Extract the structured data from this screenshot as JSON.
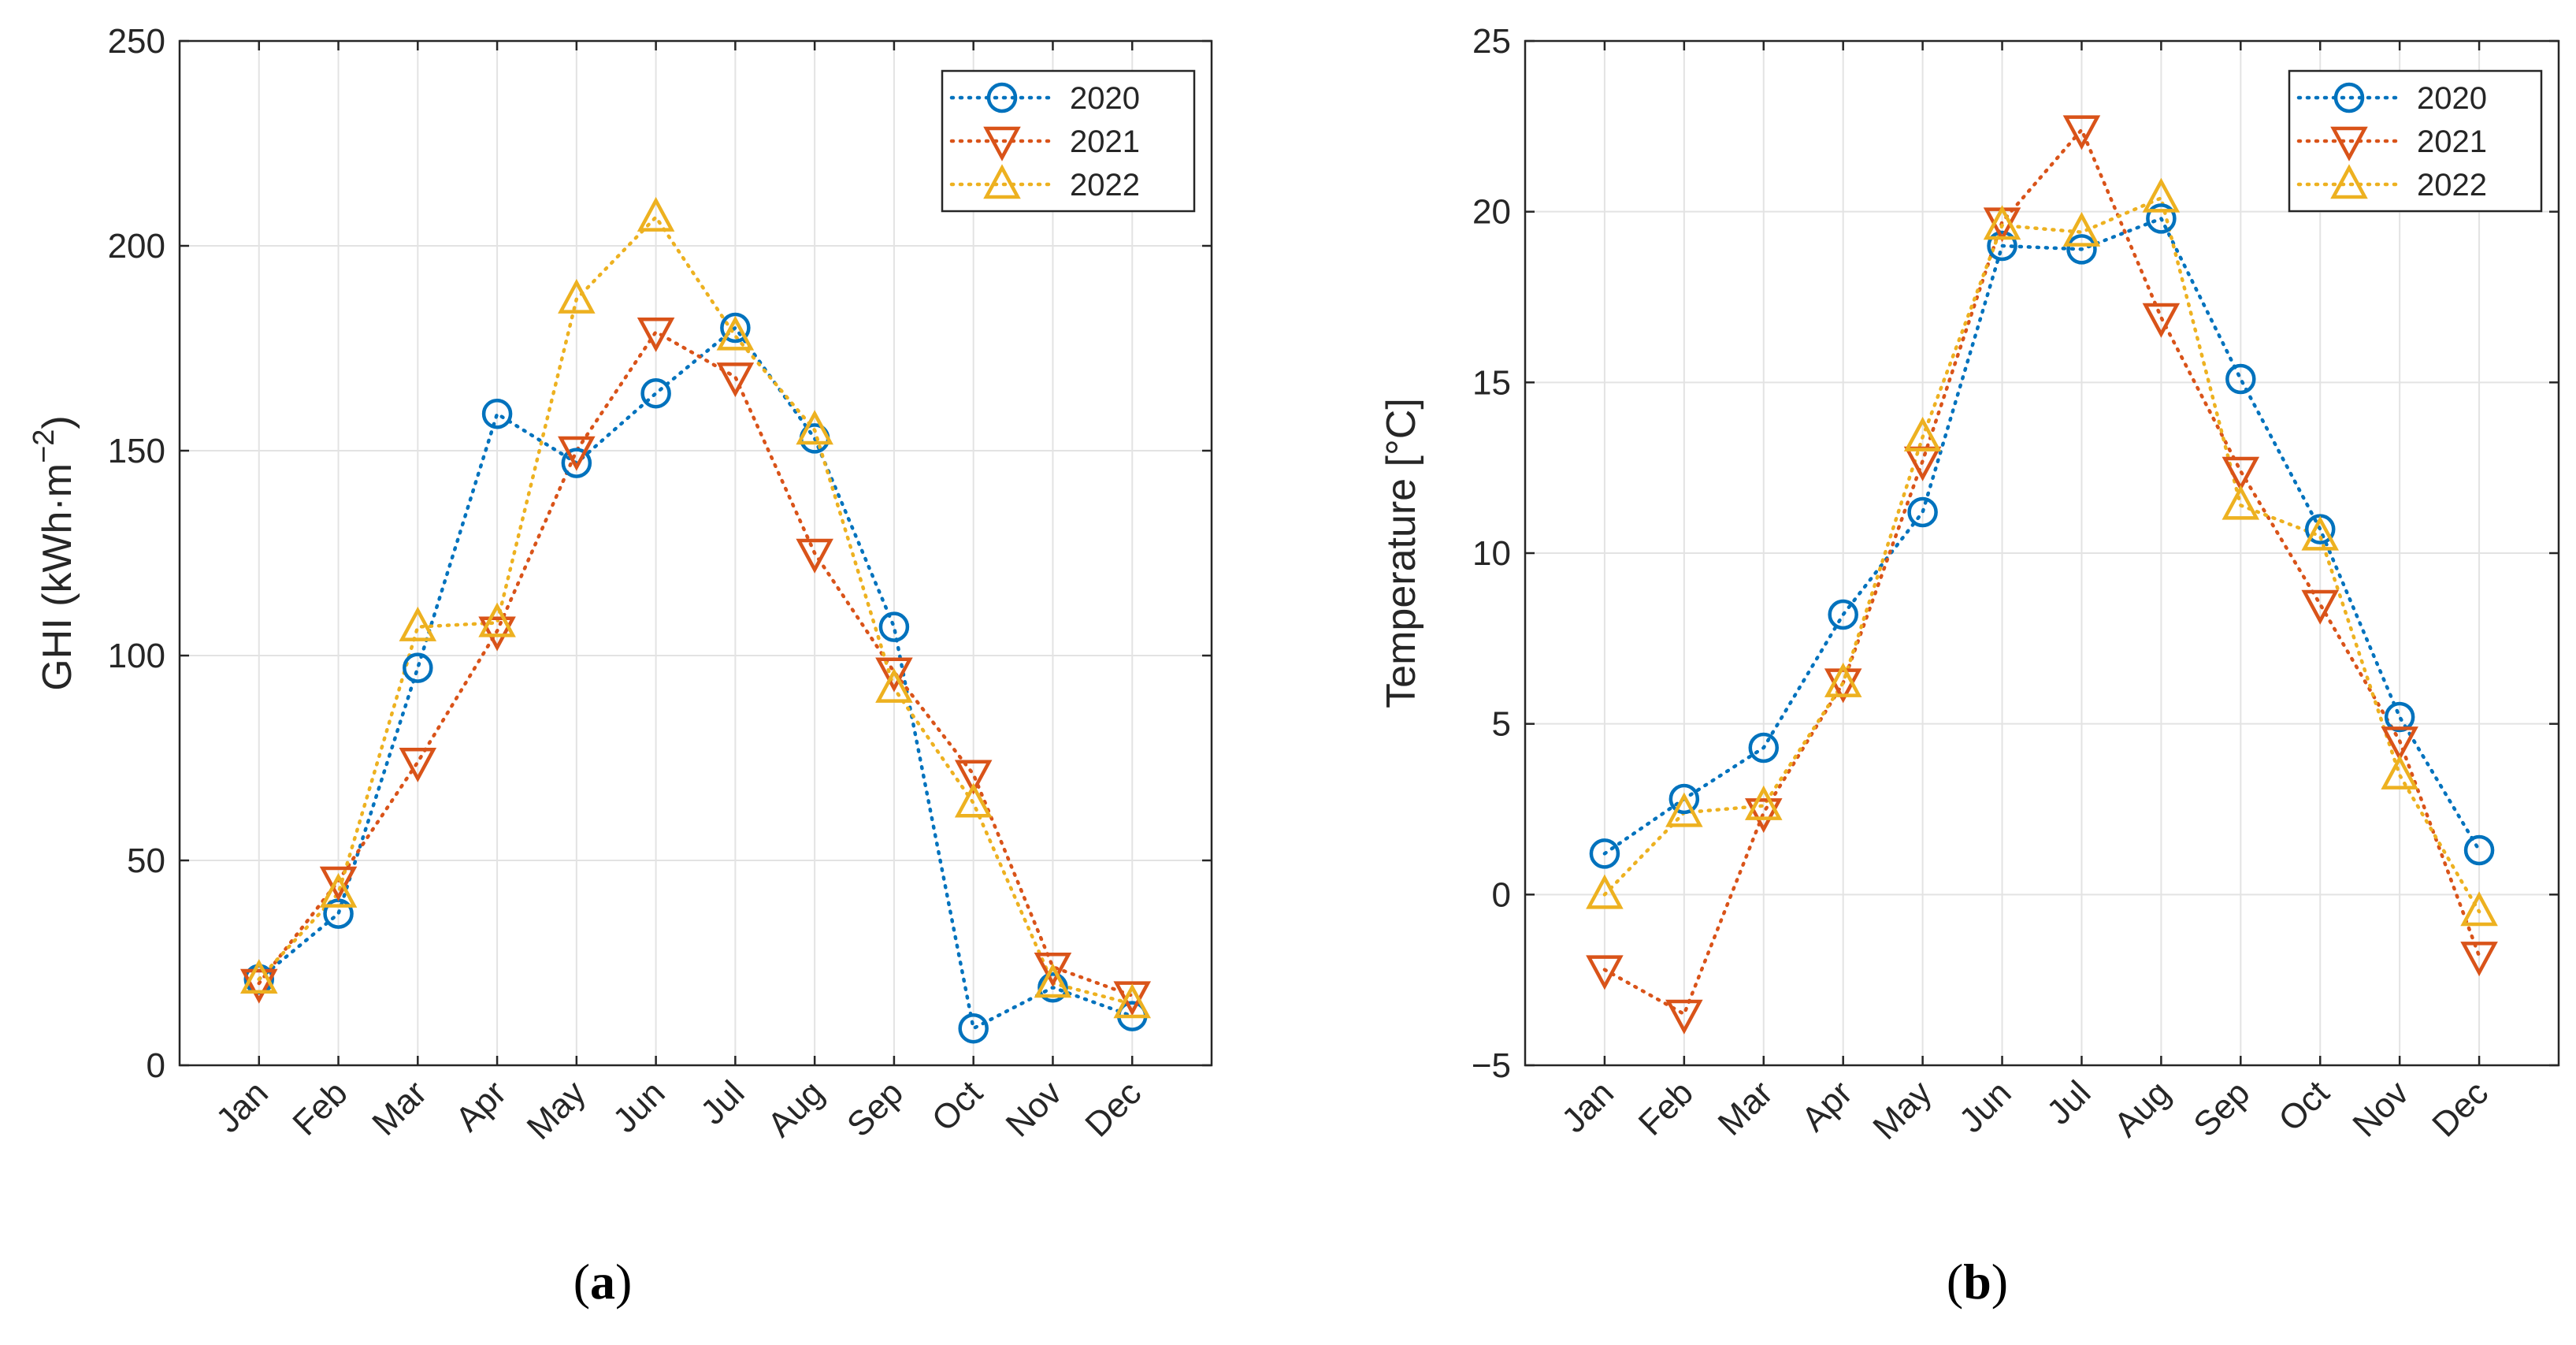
{
  "colors": {
    "2020": "#0072BD",
    "2021": "#D95319",
    "2022": "#EDB120",
    "grid": "#e3e3e3",
    "axis": "#262626"
  },
  "chart_data": [
    {
      "id": "a",
      "type": "line",
      "caption_letter": "a",
      "caption_open": "(",
      "caption_close": ")",
      "ylabel": "GHI (kWh·m",
      "ylabel_sup": "−2",
      "ylabel_close": ")",
      "ylim": [
        0,
        250
      ],
      "yticks": [
        0,
        50,
        100,
        150,
        200,
        250
      ],
      "ytick_labels": [
        "0",
        "50",
        "100",
        "150",
        "200",
        "250"
      ],
      "categories": [
        "Jan",
        "Feb",
        "Mar",
        "Apr",
        "May",
        "Jun",
        "Jul",
        "Aug",
        "Sep",
        "Oct",
        "Nov",
        "Dec"
      ],
      "legend": [
        "2020",
        "2021",
        "2022"
      ],
      "legend_position": "top-right",
      "series": [
        {
          "name": "2020",
          "marker": "circle",
          "values": [
            21,
            37,
            97,
            159,
            147,
            164,
            180,
            153,
            107,
            9,
            19,
            12
          ]
        },
        {
          "name": "2021",
          "marker": "triangle-down",
          "values": [
            20,
            45,
            74,
            106,
            150,
            179,
            168,
            125,
            96,
            71,
            24,
            17
          ]
        },
        {
          "name": "2022",
          "marker": "triangle-up",
          "values": [
            21,
            42,
            107,
            108,
            187,
            207,
            178,
            155,
            92,
            64,
            20,
            15
          ]
        }
      ]
    },
    {
      "id": "b",
      "type": "line",
      "caption_letter": "b",
      "caption_open": "(",
      "caption_close": ")",
      "ylabel": "Temperature [°C]",
      "ylim": [
        -5,
        25
      ],
      "yticks": [
        -5,
        0,
        5,
        10,
        15,
        20,
        25
      ],
      "ytick_labels": [
        "−5",
        "0",
        "5",
        "10",
        "15",
        "20",
        "25"
      ],
      "categories": [
        "Jan",
        "Feb",
        "Mar",
        "Apr",
        "May",
        "Jun",
        "Jul",
        "Aug",
        "Sep",
        "Oct",
        "Nov",
        "Dec"
      ],
      "legend": [
        "2020",
        "2021",
        "2022"
      ],
      "legend_position": "top-right",
      "series": [
        {
          "name": "2020",
          "marker": "circle",
          "values": [
            1.2,
            2.8,
            4.3,
            8.2,
            11.2,
            19.0,
            18.9,
            19.8,
            15.1,
            10.7,
            5.2,
            1.3
          ]
        },
        {
          "name": "2021",
          "marker": "triangle-down",
          "values": [
            -2.2,
            -3.5,
            2.4,
            6.2,
            12.7,
            19.7,
            22.4,
            16.9,
            12.4,
            8.5,
            4.5,
            -1.8
          ]
        },
        {
          "name": "2022",
          "marker": "triangle-up",
          "values": [
            0.0,
            2.4,
            2.6,
            6.2,
            13.4,
            19.6,
            19.4,
            20.4,
            11.4,
            10.5,
            3.5,
            -0.5
          ]
        }
      ]
    }
  ]
}
